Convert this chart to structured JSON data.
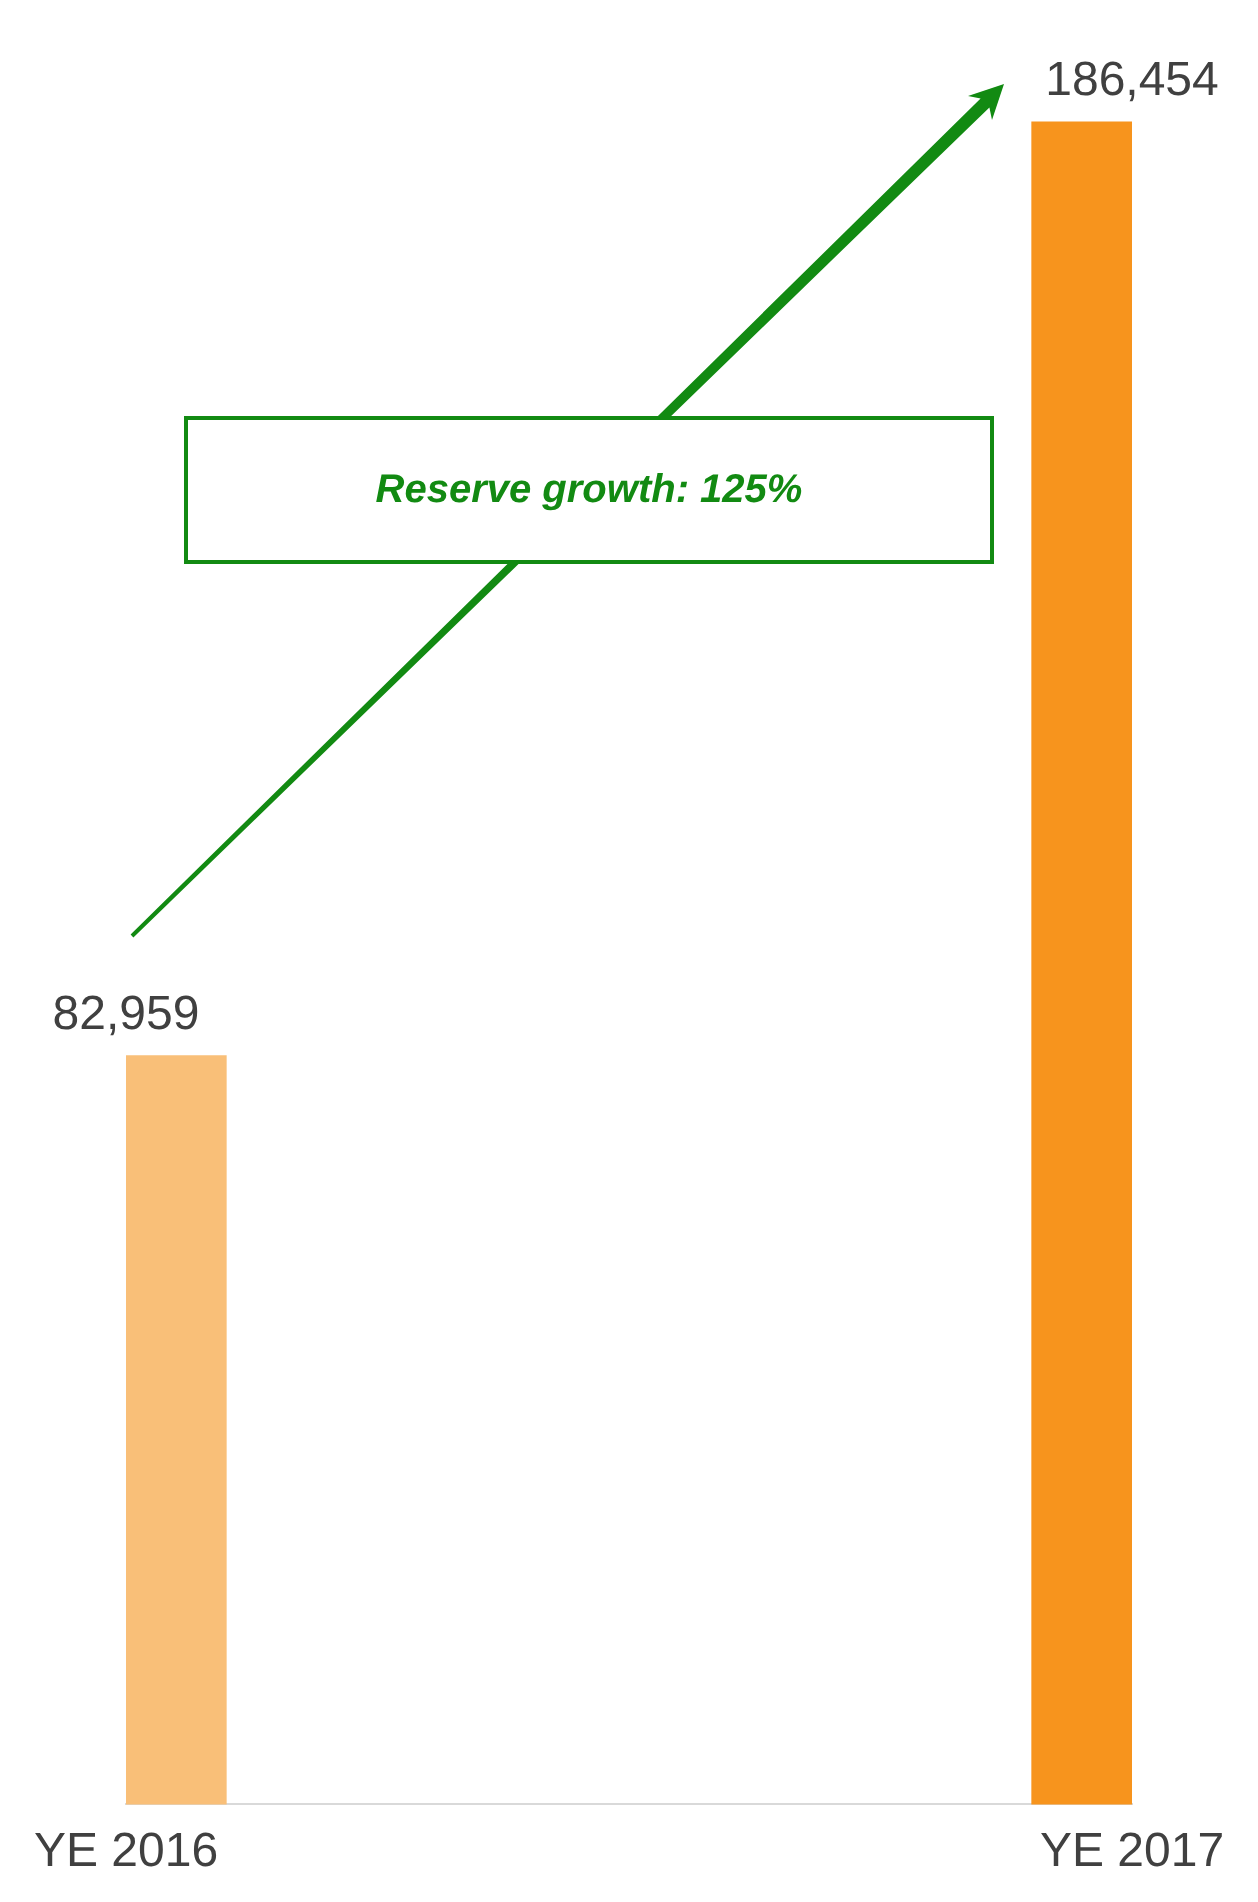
{
  "chart_data": {
    "type": "bar",
    "categories": [
      "YE 2016",
      "YE 2017"
    ],
    "values": [
      82959,
      186454
    ],
    "colors": [
      "#f9bf78",
      "#f7941d"
    ],
    "value_labels": [
      "82,959",
      "186,454"
    ],
    "grid": false,
    "legend": false,
    "tick_labels": "x",
    "annotations": [
      "Reserve growth: 125%"
    ]
  }
}
